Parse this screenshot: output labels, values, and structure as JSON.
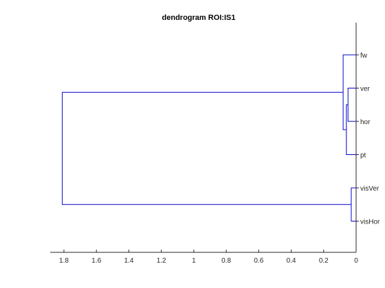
{
  "figure": {
    "title": "dendrogram ROI:IS1"
  },
  "chart_data": {
    "type": "dendrogram",
    "orientation": "left",
    "title": "dendrogram ROI:IS1",
    "xlabel": "",
    "ylabel": "",
    "xlim": [
      0,
      1.9
    ],
    "x_axis_reversed": true,
    "x_ticks": [
      1.8,
      1.6,
      1.4,
      1.2,
      1,
      0.8,
      0.6,
      0.4,
      0.2,
      0
    ],
    "x_tick_labels": [
      "1.8",
      "1.6",
      "1.4",
      "1.2",
      "1",
      "0.8",
      "0.6",
      "0.4",
      "0.2",
      "0"
    ],
    "leaves": [
      "fw",
      "ver",
      "hor",
      "pt",
      "visVer",
      "visHor"
    ],
    "merges": [
      {
        "left": "ver",
        "right": "hor",
        "height": 0.05
      },
      {
        "left": "ver+hor",
        "right": "pt",
        "height": 0.06
      },
      {
        "left": "fw",
        "right": "ver+hor+pt",
        "height": 0.08
      },
      {
        "left": "visVer",
        "right": "visHor",
        "height": 0.03
      },
      {
        "left": "fw+ver+hor+pt",
        "right": "visVer+visHor",
        "height": 1.81
      }
    ],
    "grid": false,
    "line_color": "#0000cc"
  }
}
